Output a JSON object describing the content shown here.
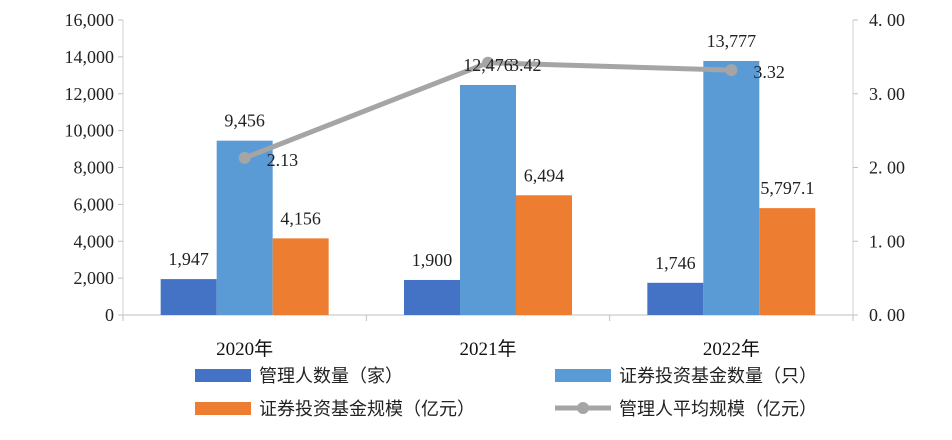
{
  "chart_data": {
    "type": "bar",
    "categories": [
      "2020年",
      "2021年",
      "2022年"
    ],
    "series": [
      {
        "name": "管理人数量（家）",
        "axis": "left",
        "kind": "bar",
        "color": "#4472C4",
        "values": [
          1947,
          1900,
          1746
        ],
        "labels": [
          "1,947",
          "1,900",
          "1,746"
        ]
      },
      {
        "name": "证券投资基金数量（只）",
        "axis": "left",
        "kind": "bar",
        "color": "#5B9BD5",
        "values": [
          9456,
          12476,
          13777
        ],
        "labels": [
          "9,456",
          "12,476",
          "13,777"
        ]
      },
      {
        "name": "证券投资基金规模（亿元）",
        "axis": "left",
        "kind": "bar",
        "color": "#ED7D31",
        "values": [
          4156,
          6494,
          5797.1
        ],
        "labels": [
          "4,156",
          "6,494",
          "5,797.1"
        ]
      },
      {
        "name": "管理人平均规模（亿元）",
        "axis": "right",
        "kind": "line",
        "color": "#A5A5A5",
        "values": [
          2.13,
          3.42,
          3.32
        ],
        "labels": [
          "2.13",
          "3.42",
          "3.32"
        ]
      }
    ],
    "ylim_left": [
      0,
      16000
    ],
    "yticks_left": [
      "0",
      "2,000",
      "4,000",
      "6,000",
      "8,000",
      "10,000",
      "12,000",
      "14,000",
      "16,000"
    ],
    "ylim_right": [
      0,
      4
    ],
    "yticks_right": [
      "0. 00",
      "1. 00",
      "2. 00",
      "3. 00",
      "4. 00"
    ],
    "grid": false,
    "legend_placement": "bottom"
  }
}
